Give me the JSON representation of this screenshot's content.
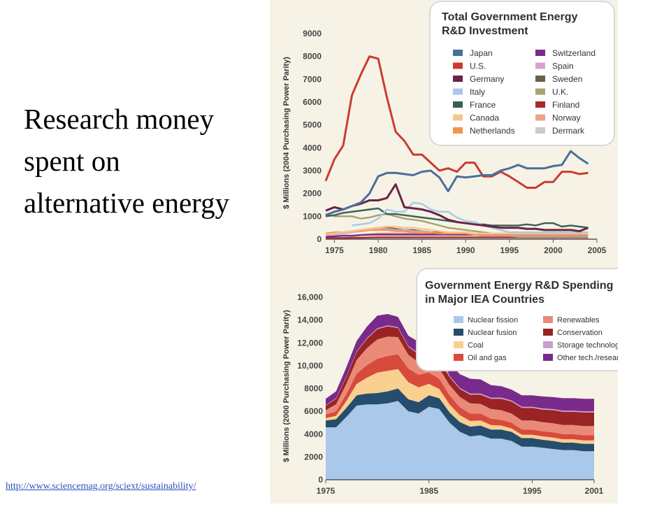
{
  "slide": {
    "title_lines": [
      "Research money",
      "spent on",
      "alternative  energy"
    ],
    "source_url": "http://www.sciencemag.org/sciext/sustainability/"
  },
  "colors": {
    "figure_background": "#f6f3e6",
    "link": "#2a52be"
  },
  "chart_data": [
    {
      "type": "line",
      "title": "Total Government Energy R&D Investment",
      "ylabel": "$ Millions (2004 Purchasing Power Parity)",
      "xlabel": "",
      "xlim": [
        1974,
        2005
      ],
      "ylim": [
        0,
        9000
      ],
      "x_ticks": [
        "1975",
        "1980",
        "1985",
        "1990",
        "1995",
        "2000",
        "2005"
      ],
      "y_ticks": [
        "0",
        "1000",
        "2000",
        "3000",
        "4000",
        "5000",
        "6000",
        "7000",
        "8000",
        "9000"
      ],
      "grid": false,
      "legend_position": "top-right",
      "x": [
        1974,
        1975,
        1976,
        1977,
        1978,
        1979,
        1980,
        1981,
        1982,
        1983,
        1984,
        1985,
        1986,
        1987,
        1988,
        1989,
        1990,
        1991,
        1992,
        1993,
        1994,
        1995,
        1996,
        1997,
        1998,
        1999,
        2000,
        2001,
        2002,
        2003,
        2004
      ],
      "series": [
        {
          "name": "Japan",
          "color": "#4a6f98",
          "values": [
            1050,
            1200,
            1300,
            1450,
            1600,
            2000,
            2750,
            2900,
            2900,
            2850,
            2800,
            2950,
            3000,
            2700,
            2100,
            2750,
            2700,
            2750,
            2800,
            2800,
            3000,
            3100,
            3250,
            3100,
            3100,
            3100,
            3200,
            3250,
            3850,
            3550,
            3300
          ]
        },
        {
          "name": "U.S.",
          "color": "#cc3b2f",
          "values": [
            2550,
            3500,
            4100,
            6300,
            7200,
            8000,
            7900,
            6200,
            4700,
            4300,
            3700,
            3700,
            3350,
            3000,
            3100,
            2950,
            3350,
            3350,
            2750,
            2750,
            2950,
            2750,
            2500,
            2250,
            2250,
            2500,
            2500,
            2950,
            2950,
            2850,
            2900
          ]
        },
        {
          "name": "Germany",
          "color": "#6b2346",
          "values": [
            1250,
            1400,
            1300,
            1450,
            1550,
            1700,
            1700,
            1800,
            2400,
            1400,
            1350,
            1300,
            1200,
            1050,
            850,
            750,
            700,
            650,
            600,
            550,
            500,
            500,
            500,
            450,
            450,
            400,
            400,
            400,
            400,
            350,
            500
          ]
        },
        {
          "name": "Italy",
          "color": "#a8c9e6",
          "values": [
            null,
            null,
            null,
            600,
            650,
            700,
            900,
            1300,
            1200,
            1200,
            1600,
            1550,
            1300,
            1200,
            1200,
            950,
            800,
            750,
            600,
            500,
            400,
            300,
            300,
            300,
            300,
            300,
            300,
            300,
            300,
            300,
            300
          ]
        },
        {
          "name": "France",
          "color": "#3a5f55",
          "values": [
            1000,
            1050,
            1150,
            1200,
            1250,
            1300,
            1350,
            1100,
            1100,
            1050,
            1000,
            950,
            900,
            850,
            800,
            750,
            700,
            650,
            650,
            600,
            600,
            600,
            600,
            650,
            600,
            700,
            700,
            550,
            600,
            550,
            500
          ]
        },
        {
          "name": "Canada",
          "color": "#f4c78a",
          "values": [
            200,
            250,
            300,
            350,
            400,
            450,
            500,
            550,
            550,
            500,
            500,
            450,
            400,
            350,
            300,
            300,
            300,
            250,
            250,
            250,
            250,
            250,
            250,
            250,
            250,
            250,
            250,
            250,
            250,
            250,
            250
          ]
        },
        {
          "name": "Netherlands",
          "color": "#f2964d",
          "values": [
            250,
            300,
            300,
            350,
            350,
            400,
            400,
            400,
            350,
            350,
            300,
            300,
            300,
            250,
            250,
            250,
            250,
            200,
            200,
            200,
            200,
            200,
            200,
            200,
            200,
            200,
            200,
            200,
            200,
            200,
            200
          ]
        },
        {
          "name": "Switzerland",
          "color": "#7a2a8a",
          "values": [
            100,
            120,
            150,
            150,
            180,
            200,
            200,
            200,
            200,
            200,
            200,
            200,
            200,
            200,
            200,
            200,
            200,
            200,
            200,
            200,
            200,
            200,
            200,
            200,
            200,
            200,
            200,
            200,
            200,
            200,
            200
          ]
        },
        {
          "name": "Spain",
          "color": "#d7a2d2",
          "values": [
            150,
            200,
            250,
            300,
            350,
            400,
            450,
            450,
            400,
            400,
            350,
            350,
            300,
            250,
            250,
            200,
            200,
            200,
            150,
            150,
            150,
            150,
            150,
            150,
            150,
            150,
            150,
            150,
            150,
            150,
            150
          ]
        },
        {
          "name": "Sweden",
          "color": "#65614f",
          "values": [
            200,
            250,
            300,
            350,
            400,
            450,
            500,
            500,
            450,
            400,
            400,
            350,
            300,
            300,
            250,
            250,
            200,
            200,
            200,
            200,
            200,
            200,
            150,
            150,
            150,
            150,
            150,
            150,
            150,
            150,
            150
          ]
        },
        {
          "name": "U.K.",
          "color": "#a6a46c",
          "values": [
            1100,
            1000,
            1000,
            1000,
            900,
            950,
            1050,
            1100,
            1000,
            900,
            850,
            800,
            700,
            600,
            500,
            450,
            400,
            350,
            300,
            250,
            200,
            150,
            100,
            100,
            100,
            100,
            100,
            100,
            100,
            100,
            100
          ]
        },
        {
          "name": "Finland",
          "color": "#a52a2a",
          "values": [
            50,
            50,
            50,
            60,
            60,
            70,
            80,
            80,
            80,
            80,
            80,
            80,
            80,
            80,
            80,
            80,
            80,
            80,
            80,
            80,
            80,
            80,
            80,
            80,
            80,
            80,
            80,
            80,
            80,
            80,
            80
          ]
        },
        {
          "name": "Norway",
          "color": "#e6a58a",
          "values": [
            100,
            120,
            150,
            150,
            180,
            200,
            250,
            250,
            250,
            250,
            250,
            250,
            250,
            250,
            250,
            200,
            200,
            200,
            200,
            200,
            200,
            200,
            200,
            200,
            200,
            200,
            200,
            200,
            200,
            200,
            200
          ]
        },
        {
          "name": "Dermark",
          "color": "#c3ccce",
          "values": [
            50,
            50,
            60,
            60,
            70,
            80,
            80,
            80,
            80,
            80,
            80,
            80,
            80,
            80,
            80,
            80,
            80,
            80,
            80,
            80,
            80,
            80,
            80,
            80,
            80,
            80,
            80,
            80,
            80,
            80,
            80
          ]
        }
      ]
    },
    {
      "type": "area",
      "stacked": true,
      "title": "Government Energy R&D Spending in Major IEA Countries",
      "ylabel": "$ Millions (2000 Purchasing Power Parity)",
      "xlabel": "",
      "xlim": [
        1975,
        2001
      ],
      "ylim": [
        0,
        16000
      ],
      "x_ticks": [
        "1975",
        "1985",
        "1995",
        "2001"
      ],
      "y_ticks": [
        "0",
        "2000",
        "4000",
        "6000",
        "8000",
        "10,000",
        "12,000",
        "14,000",
        "16,000"
      ],
      "grid": false,
      "legend_position": "top-right",
      "x": [
        1975,
        1976,
        1977,
        1978,
        1979,
        1980,
        1981,
        1982,
        1983,
        1984,
        1985,
        1986,
        1987,
        1988,
        1989,
        1990,
        1991,
        1992,
        1993,
        1994,
        1995,
        1996,
        1997,
        1998,
        1999,
        2000,
        2001
      ],
      "series": [
        {
          "name": "Nuclear fission",
          "color": "#a9c8ea",
          "values": [
            4600,
            4600,
            5500,
            6500,
            6600,
            6600,
            6700,
            6900,
            6000,
            5800,
            6400,
            6200,
            5000,
            4200,
            3800,
            3900,
            3600,
            3600,
            3400,
            2900,
            2900,
            2800,
            2700,
            2600,
            2600,
            2500,
            2500
          ]
        },
        {
          "name": "Nuclear fusion",
          "color": "#264d6e",
          "values": [
            600,
            700,
            800,
            900,
            950,
            1000,
            1050,
            1100,
            1050,
            1000,
            1000,
            950,
            900,
            850,
            850,
            850,
            800,
            800,
            800,
            750,
            750,
            700,
            700,
            650,
            650,
            650,
            650
          ]
        },
        {
          "name": "Coal",
          "color": "#f9d08f",
          "values": [
            200,
            300,
            600,
            1000,
            1400,
            1800,
            1800,
            1700,
            1500,
            1300,
            1000,
            800,
            700,
            600,
            500,
            450,
            400,
            350,
            300,
            300,
            300,
            300,
            300,
            300,
            300,
            300,
            300
          ]
        },
        {
          "name": "Oil and gas",
          "color": "#d84a3c",
          "values": [
            300,
            400,
            600,
            900,
            1100,
            1200,
            1300,
            1300,
            1200,
            1100,
            1000,
            900,
            800,
            700,
            650,
            600,
            550,
            500,
            500,
            450,
            450,
            450,
            450,
            450,
            450,
            450,
            450
          ]
        },
        {
          "name": "Renewables",
          "color": "#e88a77",
          "values": [
            400,
            600,
            900,
            1200,
            1500,
            1700,
            1700,
            1500,
            1200,
            1100,
            1000,
            900,
            900,
            900,
            900,
            850,
            850,
            850,
            800,
            800,
            800,
            800,
            800,
            800,
            800,
            800,
            800
          ]
        },
        {
          "name": "Conservation",
          "color": "#9a2323",
          "values": [
            400,
            500,
            600,
            700,
            800,
            900,
            900,
            800,
            700,
            700,
            700,
            700,
            700,
            700,
            750,
            800,
            900,
            1000,
            1050,
            1100,
            1100,
            1100,
            1150,
            1150,
            1150,
            1200,
            1200
          ]
        },
        {
          "name": "Storage technology",
          "color": "#c99ed0",
          "values": [
            50,
            50,
            60,
            70,
            80,
            80,
            80,
            80,
            80,
            80,
            80,
            900,
            100,
            100,
            100,
            100,
            100,
            100,
            100,
            100,
            100,
            100,
            100,
            100,
            100,
            100,
            100
          ]
        },
        {
          "name": "Other tech./research",
          "color": "#7a2a8a",
          "values": [
            550,
            600,
            800,
            900,
            1000,
            1100,
            1000,
            900,
            900,
            1000,
            1100,
            1100,
            1100,
            1200,
            1300,
            1250,
            1100,
            1000,
            950,
            1000,
            1000,
            1050,
            1050,
            1100,
            1100,
            1100,
            1100
          ]
        }
      ]
    }
  ]
}
